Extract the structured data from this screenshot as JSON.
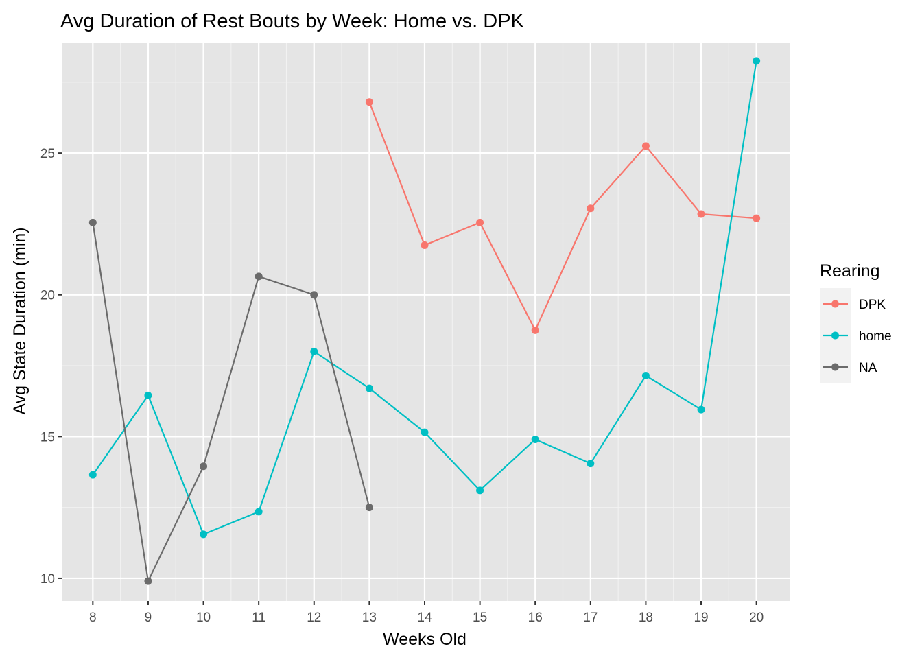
{
  "chart_data": {
    "type": "line",
    "title": "Avg Duration of Rest Bouts by Week: Home vs. DPK",
    "xlabel": "Weeks Old",
    "ylabel": "Avg State Duration (min)",
    "x_ticks": [
      8,
      9,
      10,
      11,
      12,
      13,
      14,
      15,
      16,
      17,
      18,
      19,
      20
    ],
    "y_ticks": [
      10,
      15,
      20,
      25
    ],
    "xlim": [
      7.45,
      20.6
    ],
    "ylim": [
      9.2,
      28.9
    ],
    "grid": true,
    "legend": {
      "title": "Rearing",
      "position": "right"
    },
    "series": [
      {
        "name": "DPK",
        "color": "#F8766D",
        "x": [
          13,
          14,
          15,
          16,
          17,
          18,
          19,
          20
        ],
        "y": [
          26.8,
          21.75,
          22.55,
          18.75,
          23.05,
          25.25,
          22.85,
          22.7
        ]
      },
      {
        "name": "home",
        "color": "#00BFC4",
        "x": [
          8,
          9,
          10,
          11,
          12,
          13,
          14,
          15,
          16,
          17,
          18,
          19,
          20
        ],
        "y": [
          13.65,
          16.45,
          11.55,
          12.35,
          18.0,
          16.7,
          15.15,
          13.1,
          14.9,
          14.05,
          17.15,
          15.95,
          28.25
        ]
      },
      {
        "name": "NA",
        "color": "#6b6b6b",
        "x": [
          8,
          9,
          10,
          11,
          12,
          13
        ],
        "y": [
          22.55,
          9.9,
          13.95,
          20.65,
          20.0,
          12.5
        ]
      }
    ]
  }
}
